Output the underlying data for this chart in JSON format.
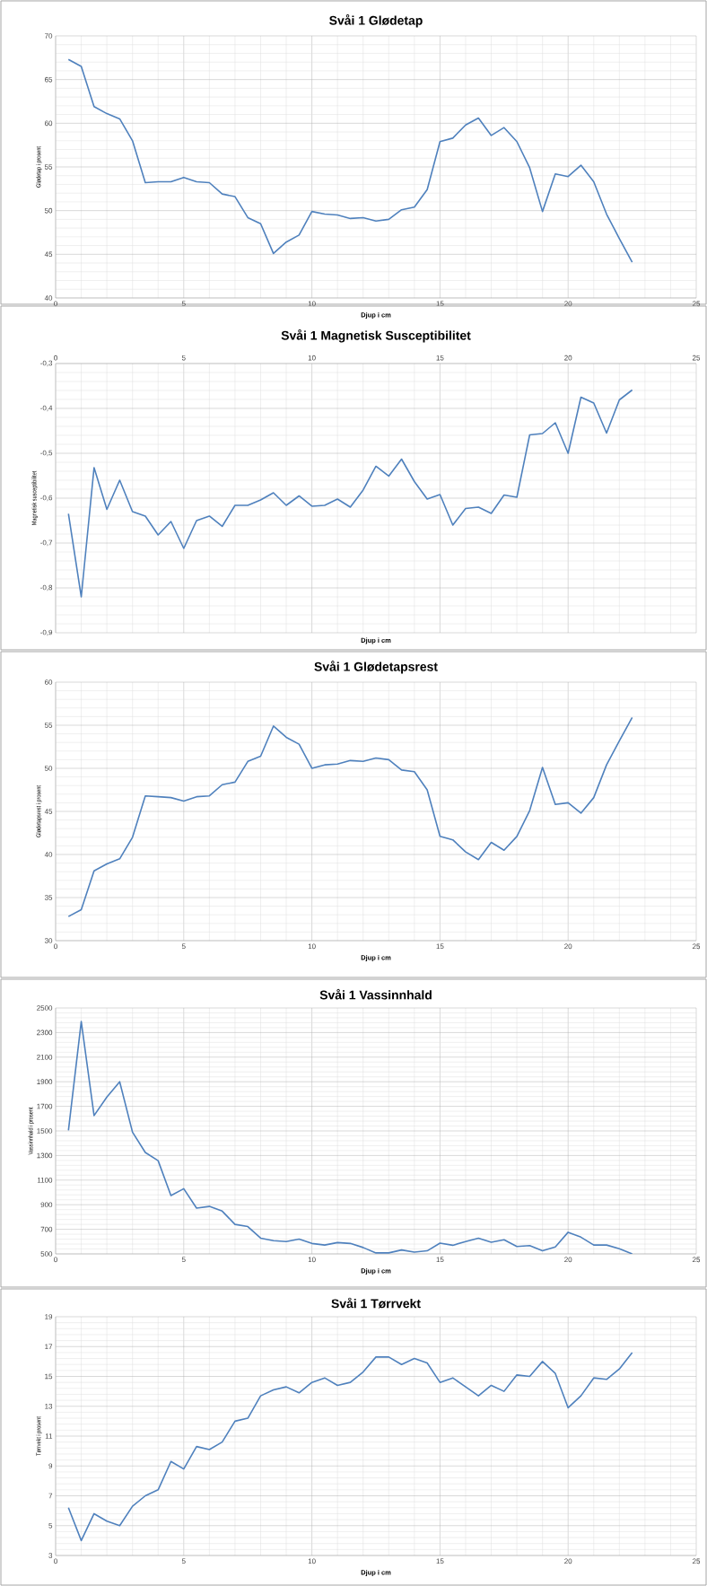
{
  "chart_data": [
    {
      "type": "line",
      "title": "Svåi 1 Glødetap",
      "xlabel": "Djup i cm",
      "ylabel": "Glødetap i prosent",
      "color": "#4f81bd",
      "grid": true,
      "xlim": [
        0,
        25
      ],
      "xticks": [
        0,
        5,
        10,
        15,
        20,
        25
      ],
      "ylim": [
        40,
        70
      ],
      "yticks": [
        40,
        45,
        50,
        55,
        60,
        65,
        70
      ],
      "x": [
        0.5,
        1,
        1.5,
        2,
        2.5,
        3,
        3.5,
        4,
        4.5,
        5,
        5.5,
        6,
        6.5,
        7,
        7.5,
        8,
        8.5,
        9,
        9.5,
        10,
        10.5,
        11,
        11.5,
        12,
        12.5,
        13,
        13.5,
        14,
        14.5,
        15,
        15.5,
        16,
        16.5,
        17,
        17.5,
        18,
        18.5,
        19,
        19.5,
        20,
        20.5,
        21,
        21.5,
        22,
        22.5
      ],
      "values": [
        67.3,
        66.5,
        61.9,
        61.1,
        60.5,
        58.0,
        53.2,
        53.3,
        53.3,
        53.8,
        53.3,
        53.2,
        51.9,
        51.6,
        49.2,
        48.5,
        45.1,
        46.4,
        47.2,
        49.9,
        49.6,
        49.5,
        49.1,
        49.2,
        48.8,
        49.0,
        50.1,
        50.4,
        52.4,
        57.9,
        58.3,
        59.8,
        60.6,
        58.6,
        59.5,
        57.9,
        54.9,
        49.9,
        54.2,
        53.9,
        55.2,
        53.3,
        49.6,
        46.8,
        44.1
      ]
    },
    {
      "type": "line",
      "title": "Svåi 1 Magnetisk Susceptibilitet",
      "xlabel": "Djup i cm",
      "ylabel": "Magnetisk susceptibilitet",
      "color": "#4f81bd",
      "grid": true,
      "xlim": [
        0,
        25
      ],
      "xticks": [
        0,
        5,
        10,
        15,
        20,
        25
      ],
      "ylim": [
        -0.9,
        -0.3
      ],
      "yticks": [
        {
          "value": -0.9,
          "label": "-0,9"
        },
        {
          "value": -0.8,
          "label": "-0,8"
        },
        {
          "value": -0.7,
          "label": "-0,7"
        },
        {
          "value": -0.6,
          "label": "-0,6"
        },
        {
          "value": -0.5,
          "label": "-0,5"
        },
        {
          "value": -0.4,
          "label": "-0,4"
        },
        {
          "value": -0.3,
          "label": "-0,3"
        }
      ],
      "x": [
        0.5,
        1,
        1.5,
        2,
        2.5,
        3,
        3.5,
        4,
        4.5,
        5,
        5.5,
        6,
        6.5,
        7,
        7.5,
        8,
        8.5,
        9,
        9.5,
        10,
        10.5,
        11,
        11.5,
        12,
        12.5,
        13,
        13.5,
        14,
        14.5,
        15,
        15.5,
        16,
        16.5,
        17,
        17.5,
        18,
        18.5,
        19,
        19.5,
        20,
        20.5,
        21,
        21.5,
        22,
        22.5
      ],
      "values": [
        -0.635,
        -0.82,
        -0.532,
        -0.625,
        -0.56,
        -0.63,
        -0.64,
        -0.682,
        -0.652,
        -0.712,
        -0.65,
        -0.64,
        -0.663,
        -0.616,
        -0.616,
        -0.604,
        -0.588,
        -0.616,
        -0.595,
        -0.618,
        -0.616,
        -0.602,
        -0.62,
        -0.582,
        -0.529,
        -0.551,
        -0.513,
        -0.563,
        -0.602,
        -0.592,
        -0.66,
        -0.623,
        -0.62,
        -0.634,
        -0.593,
        -0.598,
        -0.459,
        -0.456,
        -0.432,
        -0.5,
        -0.375,
        -0.388,
        -0.455,
        -0.381,
        -0.359
      ]
    },
    {
      "type": "line",
      "title": "Svåi 1 Glødetapsrest",
      "xlabel": "Djup i cm",
      "ylabel": "Glødetapsrest i prosent",
      "color": "#4f81bd",
      "grid": true,
      "xlim": [
        0,
        25
      ],
      "xticks": [
        0,
        5,
        10,
        15,
        20,
        25
      ],
      "ylim": [
        30,
        60
      ],
      "yticks": [
        30,
        35,
        40,
        45,
        50,
        55,
        60
      ],
      "x": [
        0.5,
        1,
        1.5,
        2,
        2.5,
        3,
        3.5,
        4,
        4.5,
        5,
        5.5,
        6,
        6.5,
        7,
        7.5,
        8,
        8.5,
        9,
        9.5,
        10,
        10.5,
        11,
        11.5,
        12,
        12.5,
        13,
        13.5,
        14,
        14.5,
        15,
        15.5,
        16,
        16.5,
        17,
        17.5,
        18,
        18.5,
        19,
        19.5,
        20,
        20.5,
        21,
        21.5,
        22,
        22.5
      ],
      "values": [
        32.8,
        33.6,
        38.1,
        38.9,
        39.5,
        42.0,
        46.8,
        46.7,
        46.6,
        46.2,
        46.7,
        46.8,
        48.1,
        48.4,
        50.8,
        51.4,
        54.9,
        53.6,
        52.8,
        50.0,
        50.4,
        50.5,
        50.9,
        50.8,
        51.2,
        51.0,
        49.8,
        49.6,
        47.5,
        42.1,
        41.7,
        40.3,
        39.4,
        41.4,
        40.5,
        42.1,
        45.1,
        50.1,
        45.8,
        46.0,
        44.8,
        46.6,
        50.4,
        53.2,
        55.9
      ]
    },
    {
      "type": "line",
      "title": "Svåi 1 Vassinnhald",
      "xlabel": "Djup i cm",
      "ylabel": "Vassinnhald i prosent",
      "color": "#4f81bd",
      "grid": true,
      "xlim": [
        0,
        25
      ],
      "xticks": [
        0,
        5,
        10,
        15,
        20,
        25
      ],
      "ylim": [
        500,
        2500
      ],
      "yticks": [
        500,
        700,
        900,
        1100,
        1300,
        1500,
        1700,
        1900,
        2100,
        2300,
        2500
      ],
      "x": [
        0.5,
        1,
        1.5,
        2,
        2.5,
        3,
        3.5,
        4,
        4.5,
        5,
        5.5,
        6,
        6.5,
        7,
        7.5,
        8,
        8.5,
        9,
        9.5,
        10,
        10.5,
        11,
        11.5,
        12,
        12.5,
        13,
        13.5,
        14,
        14.5,
        15,
        15.5,
        16,
        16.5,
        17,
        17.5,
        18,
        18.5,
        19,
        19.5,
        20,
        20.5,
        21,
        21.5,
        22,
        22.5
      ],
      "values": [
        1505,
        2390,
        1625,
        1775,
        1900,
        1490,
        1325,
        1258,
        975,
        1030,
        872,
        886,
        848,
        740,
        722,
        628,
        608,
        600,
        620,
        585,
        572,
        592,
        585,
        552,
        508,
        508,
        532,
        515,
        525,
        588,
        570,
        600,
        628,
        595,
        615,
        560,
        567,
        525,
        556,
        676,
        636,
        572,
        572,
        542,
        500
      ]
    },
    {
      "type": "line",
      "title": "Svåi 1 Tørrvekt",
      "xlabel": "Djup i cm",
      "ylabel": "Tørrvekt i prosent",
      "color": "#4f81bd",
      "grid": true,
      "xlim": [
        0,
        25
      ],
      "xticks": [
        0,
        5,
        10,
        15,
        20,
        25
      ],
      "ylim": [
        3,
        19
      ],
      "yticks": [
        3,
        5,
        7,
        9,
        11,
        13,
        15,
        17,
        19
      ],
      "x": [
        0.5,
        1,
        1.5,
        2,
        2.5,
        3,
        3.5,
        4,
        4.5,
        5,
        5.5,
        6,
        6.5,
        7,
        7.5,
        8,
        8.5,
        9,
        9.5,
        10,
        10.5,
        11,
        11.5,
        12,
        12.5,
        13,
        13.5,
        14,
        14.5,
        15,
        15.5,
        16,
        16.5,
        17,
        17.5,
        18,
        18.5,
        19,
        19.5,
        20,
        20.5,
        21,
        21.5,
        22,
        22.5
      ],
      "values": [
        6.2,
        4.0,
        5.8,
        5.3,
        5.0,
        6.3,
        7.0,
        7.4,
        9.3,
        8.8,
        10.3,
        10.1,
        10.6,
        12.0,
        12.2,
        13.7,
        14.1,
        14.3,
        13.9,
        14.6,
        14.9,
        14.4,
        14.6,
        15.3,
        16.3,
        16.3,
        15.8,
        16.2,
        15.9,
        14.6,
        14.9,
        14.3,
        13.7,
        14.4,
        14.0,
        15.1,
        15.0,
        16.0,
        15.2,
        12.9,
        13.7,
        14.9,
        14.8,
        15.5,
        16.6
      ]
    }
  ]
}
